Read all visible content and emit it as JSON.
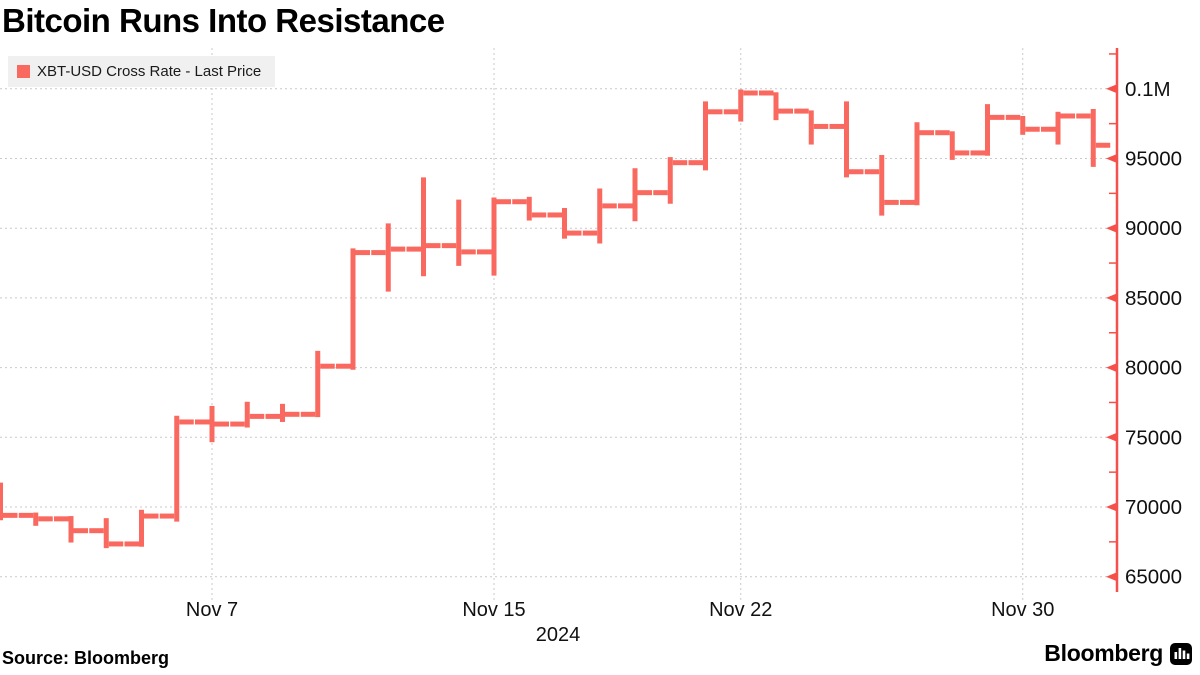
{
  "title": "Bitcoin Runs Into Resistance",
  "legend": {
    "swatch_color": "#f9695f",
    "label": "XBT-USD Cross Rate - Last Price"
  },
  "source_line": "Source: Bloomberg",
  "branding": {
    "logo_text": "Bloomberg",
    "logo_icon": "bar-chart-icon"
  },
  "colors": {
    "bar": "#f9695f",
    "axis": "#f5514a",
    "grid": "#c9c9c9",
    "legend_bg": "#f0f0f0",
    "text": "#111111",
    "background": "#ffffff"
  },
  "chart_data": {
    "type": "ohlc-bar",
    "title": "Bitcoin Runs Into Resistance",
    "series_name": "XBT-USD Cross Rate - Last Price",
    "legend_position": "top-left",
    "grid": true,
    "x_axis": {
      "year_label": "2024",
      "tick_labels": [
        {
          "label": "Nov 7",
          "day_index": 6
        },
        {
          "label": "Nov 15",
          "day_index": 14
        },
        {
          "label": "Nov 22",
          "day_index": 21
        },
        {
          "label": "Nov 30",
          "day_index": 29
        }
      ]
    },
    "y_axis": {
      "side": "right",
      "major_ticks": [
        {
          "label": "0.1M",
          "value": 100000
        },
        {
          "label": "95000",
          "value": 95000
        },
        {
          "label": "90000",
          "value": 90000
        },
        {
          "label": "85000",
          "value": 85000
        },
        {
          "label": "80000",
          "value": 80000
        },
        {
          "label": "75000",
          "value": 75000
        },
        {
          "label": "70000",
          "value": 70000
        },
        {
          "label": "65000",
          "value": 65000
        }
      ],
      "minor_tick_values": [
        102500,
        97500,
        92500,
        87500,
        82500,
        77500,
        72500,
        67500
      ],
      "displayed_range": [
        65000,
        100000
      ]
    },
    "bars": [
      {
        "date": "Nov 1",
        "open": 70800,
        "high": 71750,
        "low": 69050,
        "close": 69400
      },
      {
        "date": "Nov 2",
        "open": 69400,
        "high": 69600,
        "low": 68650,
        "close": 69150
      },
      {
        "date": "Nov 3",
        "open": 69150,
        "high": 69350,
        "low": 67450,
        "close": 68300
      },
      {
        "date": "Nov 4",
        "open": 68300,
        "high": 69200,
        "low": 67050,
        "close": 67350
      },
      {
        "date": "Nov 5",
        "open": 67350,
        "high": 69800,
        "low": 67150,
        "close": 69350
      },
      {
        "date": "Nov 6",
        "open": 69350,
        "high": 76550,
        "low": 68950,
        "close": 76100
      },
      {
        "date": "Nov 7",
        "open": 76100,
        "high": 77250,
        "low": 74650,
        "close": 75950
      },
      {
        "date": "Nov 8",
        "open": 75950,
        "high": 77550,
        "low": 75700,
        "close": 76500
      },
      {
        "date": "Nov 9",
        "open": 76500,
        "high": 77400,
        "low": 76100,
        "close": 76650
      },
      {
        "date": "Nov 10",
        "open": 76650,
        "high": 81200,
        "low": 76450,
        "close": 80100
      },
      {
        "date": "Nov 11",
        "open": 80100,
        "high": 88550,
        "low": 79850,
        "close": 88250
      },
      {
        "date": "Nov 12",
        "open": 88250,
        "high": 90350,
        "low": 85450,
        "close": 88500
      },
      {
        "date": "Nov 13",
        "open": 88500,
        "high": 93650,
        "low": 86550,
        "close": 88750
      },
      {
        "date": "Nov 14",
        "open": 88750,
        "high": 92050,
        "low": 87300,
        "close": 88300
      },
      {
        "date": "Nov 15",
        "open": 88300,
        "high": 92200,
        "low": 86600,
        "close": 91900
      },
      {
        "date": "Nov 16",
        "open": 91900,
        "high": 92250,
        "low": 90550,
        "close": 90950
      },
      {
        "date": "Nov 17",
        "open": 90950,
        "high": 91450,
        "low": 89250,
        "close": 89650
      },
      {
        "date": "Nov 18",
        "open": 89650,
        "high": 92850,
        "low": 88900,
        "close": 91600
      },
      {
        "date": "Nov 19",
        "open": 91600,
        "high": 94300,
        "low": 90500,
        "close": 92550
      },
      {
        "date": "Nov 20",
        "open": 92550,
        "high": 95100,
        "low": 91750,
        "close": 94700
      },
      {
        "date": "Nov 21",
        "open": 94700,
        "high": 99100,
        "low": 94150,
        "close": 98350
      },
      {
        "date": "Nov 22",
        "open": 98350,
        "high": 99950,
        "low": 97650,
        "close": 99700
      },
      {
        "date": "Nov 23",
        "open": 99700,
        "high": 99750,
        "low": 97750,
        "close": 98400
      },
      {
        "date": "Nov 24",
        "open": 98400,
        "high": 98450,
        "low": 96000,
        "close": 97300
      },
      {
        "date": "Nov 25",
        "open": 97300,
        "high": 99100,
        "low": 93650,
        "close": 94050
      },
      {
        "date": "Nov 26",
        "open": 94050,
        "high": 95250,
        "low": 90900,
        "close": 91850
      },
      {
        "date": "Nov 27",
        "open": 91850,
        "high": 97600,
        "low": 91650,
        "close": 96850
      },
      {
        "date": "Nov 28",
        "open": 96850,
        "high": 96950,
        "low": 94900,
        "close": 95400
      },
      {
        "date": "Nov 29",
        "open": 95400,
        "high": 98900,
        "low": 95200,
        "close": 97950
      },
      {
        "date": "Nov 30",
        "open": 97950,
        "high": 98050,
        "low": 96700,
        "close": 97100
      },
      {
        "date": "Dec 1",
        "open": 97100,
        "high": 98350,
        "low": 96000,
        "close": 98050
      },
      {
        "date": "Dec 2",
        "open": 98050,
        "high": 98550,
        "low": 94400,
        "close": 95950
      }
    ]
  }
}
